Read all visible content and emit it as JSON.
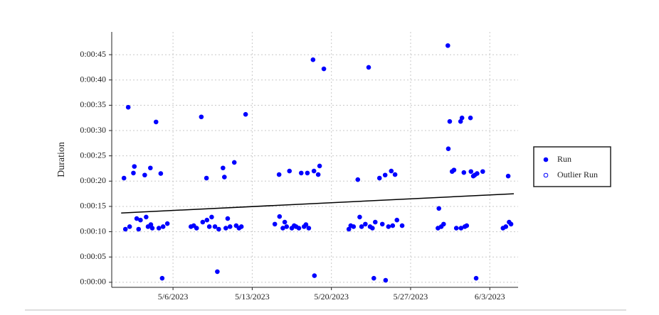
{
  "chart_data": {
    "type": "scatter",
    "y_label": "Duration",
    "xlim": [
      "2023-04-30T14:00",
      "2023-06-05T12:00"
    ],
    "xticks": [
      {
        "value": "2023-05-06",
        "label": "5/6/2023"
      },
      {
        "value": "2023-05-13",
        "label": "5/13/2023"
      },
      {
        "value": "2023-05-20",
        "label": "5/20/2023"
      },
      {
        "value": "2023-05-27",
        "label": "5/27/2023"
      },
      {
        "value": "2023-06-03",
        "label": "6/3/2023"
      }
    ],
    "ylim": [
      -1,
      49.5
    ],
    "yticks": [
      {
        "value": 0,
        "label": "0:00:00"
      },
      {
        "value": 5,
        "label": "0:00:05"
      },
      {
        "value": 10,
        "label": "0:00:10"
      },
      {
        "value": 15,
        "label": "0:00:15"
      },
      {
        "value": 20,
        "label": "0:00:20"
      },
      {
        "value": 25,
        "label": "0:00:25"
      },
      {
        "value": 30,
        "label": "0:00:30"
      },
      {
        "value": 35,
        "label": "0:00:35"
      },
      {
        "value": 40,
        "label": "0:00:40"
      },
      {
        "value": 45,
        "label": "0:00:45"
      }
    ],
    "grid": true,
    "legend": "right",
    "series": [
      {
        "name": "Run",
        "color": "#0000ff",
        "marker": "filled",
        "x": [
          "2023-05-01T16:00",
          "2023-05-01T19:00",
          "2023-05-02T01:00",
          "2023-05-02T04:00",
          "2023-05-02T12:00",
          "2023-05-02T14:00",
          "2023-05-02T19:00",
          "2023-05-02T23:00",
          "2023-05-03T03:00",
          "2023-05-03T12:00",
          "2023-05-03T15:00",
          "2023-05-03T19:00",
          "2023-05-04T00:00",
          "2023-05-04T01:00",
          "2023-05-04T04:00",
          "2023-05-04T12:00",
          "2023-05-04T18:00",
          "2023-05-04T22:00",
          "2023-05-05T01:00",
          "2023-05-05T03:00",
          "2023-05-05T12:00",
          "2023-05-07T14:00",
          "2023-05-07T20:00",
          "2023-05-08T02:00",
          "2023-05-08T12:00",
          "2023-05-08T15:00",
          "2023-05-08T23:00",
          "2023-05-09T00:00",
          "2023-05-09T05:00",
          "2023-05-09T10:00",
          "2023-05-09T17:00",
          "2023-05-09T22:00",
          "2023-05-10T01:00",
          "2023-05-10T10:00",
          "2023-05-10T13:00",
          "2023-05-10T16:00",
          "2023-05-10T20:00",
          "2023-05-11T01:00",
          "2023-05-11T10:00",
          "2023-05-11T14:00",
          "2023-05-11T20:00",
          "2023-05-12T01:00",
          "2023-05-12T10:00",
          "2023-05-15T00:00",
          "2023-05-15T09:00",
          "2023-05-15T10:00",
          "2023-05-15T17:00",
          "2023-05-15T21:00",
          "2023-05-16T01:00",
          "2023-05-16T07:00",
          "2023-05-16T12:00",
          "2023-05-16T17:00",
          "2023-05-16T21:00",
          "2023-05-17T03:00",
          "2023-05-17T08:00",
          "2023-05-17T14:00",
          "2023-05-17T18:00",
          "2023-05-17T21:00",
          "2023-05-18T00:00",
          "2023-05-18T09:00",
          "2023-05-18T11:00",
          "2023-05-18T12:00",
          "2023-05-18T20:00",
          "2023-05-18T23:00",
          "2023-05-19T08:00",
          "2023-05-21T13:00",
          "2023-05-21T17:00",
          "2023-05-21T23:00",
          "2023-05-22T08:00",
          "2023-05-22T12:00",
          "2023-05-22T16:00",
          "2023-05-23T00:00",
          "2023-05-23T07:00",
          "2023-05-23T10:00",
          "2023-05-23T15:00",
          "2023-05-23T18:00",
          "2023-05-23T21:00",
          "2023-05-24T06:00",
          "2023-05-24T12:00",
          "2023-05-24T18:00",
          "2023-05-24T19:00",
          "2023-05-25T01:00",
          "2023-05-25T07:00",
          "2023-05-25T10:00",
          "2023-05-25T15:00",
          "2023-05-25T19:00",
          "2023-05-26T06:00",
          "2023-05-29T10:00",
          "2023-05-29T12:00",
          "2023-05-29T17:00",
          "2023-05-29T22:00",
          "2023-05-30T07:00",
          "2023-05-30T08:00",
          "2023-05-30T11:00",
          "2023-05-30T16:00",
          "2023-05-30T20:00",
          "2023-05-31T01:00",
          "2023-05-31T10:00",
          "2023-05-31T11:00",
          "2023-05-31T13:00",
          "2023-05-31T17:00",
          "2023-05-31T19:00",
          "2023-05-31T23:00",
          "2023-06-01T07:00",
          "2023-06-01T08:00",
          "2023-06-01T13:00",
          "2023-06-01T16:00",
          "2023-06-01T19:00",
          "2023-06-01T21:00",
          "2023-06-02T09:00",
          "2023-06-04T04:00",
          "2023-06-04T10:00",
          "2023-06-04T15:00",
          "2023-06-04T17:00",
          "2023-06-04T21:00"
        ],
        "values": [
          20.6,
          10.5,
          34.6,
          11,
          21.6,
          22.9,
          12.6,
          10.5,
          12.3,
          21.2,
          12.9,
          11,
          22.6,
          11.4,
          10.7,
          31.7,
          10.7,
          21.5,
          0.8,
          11,
          11.6,
          11,
          11.2,
          10.7,
          32.7,
          11.9,
          20.6,
          12.3,
          11,
          12.9,
          11,
          2.1,
          10.5,
          22.6,
          20.8,
          10.7,
          12.6,
          11,
          23.7,
          11.2,
          10.7,
          11,
          33.2,
          11.5,
          21.3,
          13,
          10.7,
          11.9,
          11,
          22,
          10.7,
          11.2,
          11,
          10.7,
          21.6,
          11,
          11.4,
          21.6,
          10.7,
          44,
          22,
          1.3,
          21.3,
          23,
          42.2,
          10.5,
          11.2,
          11,
          20.3,
          12.9,
          11,
          11.5,
          42.5,
          11,
          10.7,
          0.8,
          11.9,
          20.6,
          11.5,
          21.2,
          0.4,
          11,
          22,
          11.2,
          21.3,
          12.3,
          11.2,
          10.7,
          14.6,
          11,
          11.5,
          46.8,
          26.4,
          31.8,
          21.9,
          22.2,
          10.7,
          31.8,
          10.7,
          32.5,
          21.7,
          11,
          11.2,
          32.5,
          21.9,
          21,
          21.2,
          0.8,
          21.5,
          21.9,
          10.7,
          11,
          21,
          11.9,
          11.5
        ]
      },
      {
        "name": "Outlier Run",
        "color": "#0000ff",
        "marker": "hollow",
        "x": [],
        "values": []
      }
    ],
    "trendline": {
      "color": "#000000",
      "x": [
        "2023-05-01T10:00",
        "2023-06-05T03:00"
      ],
      "values": [
        13.7,
        17.5
      ]
    }
  }
}
